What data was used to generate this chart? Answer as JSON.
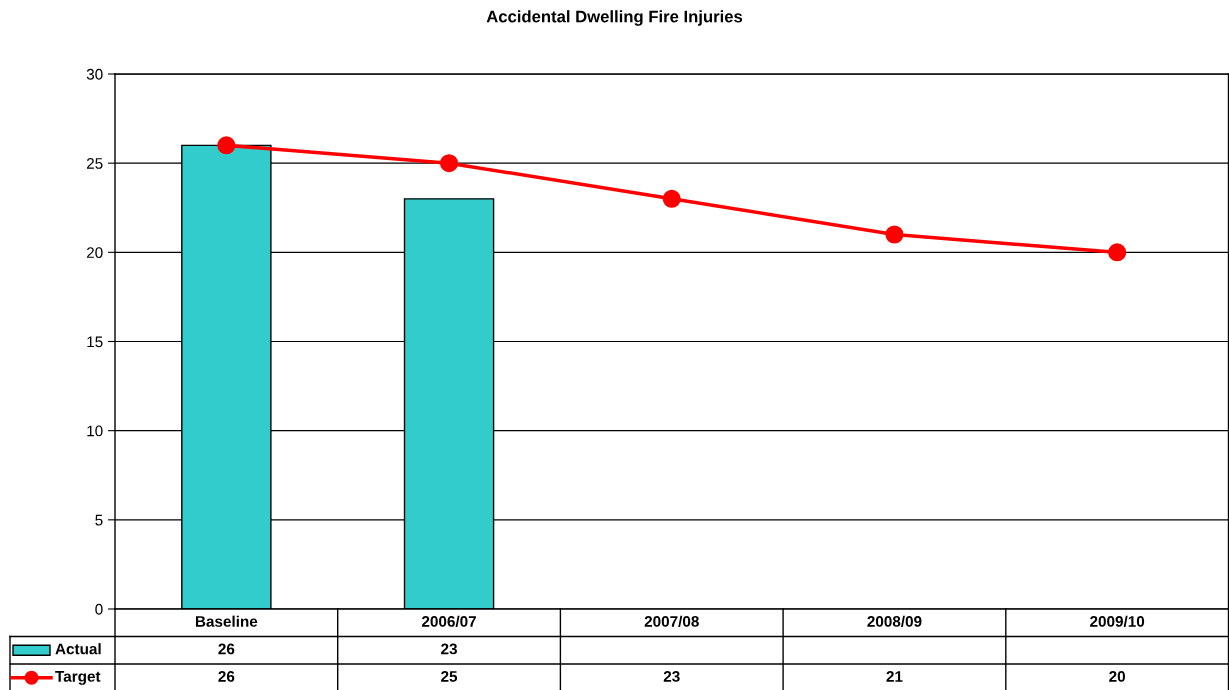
{
  "chart_data": {
    "type": "bar",
    "title": "Accidental Dwelling Fire Injuries",
    "categories": [
      "Baseline",
      "2006/07",
      "2007/08",
      "2008/09",
      "2009/10"
    ],
    "series": [
      {
        "name": "Actual",
        "color": "#33cccc",
        "values": [
          26,
          23,
          null,
          null,
          null
        ]
      },
      {
        "name": "Target",
        "type": "line",
        "color": "#ff0000",
        "values": [
          26,
          25,
          23,
          21,
          20
        ]
      }
    ],
    "ylim": [
      0,
      30
    ],
    "yticks": [
      0,
      5,
      10,
      15,
      20,
      25,
      30
    ],
    "grid": "y",
    "legend": "bottom",
    "data_labels": true,
    "marker": "circle",
    "line_style": "solid"
  }
}
